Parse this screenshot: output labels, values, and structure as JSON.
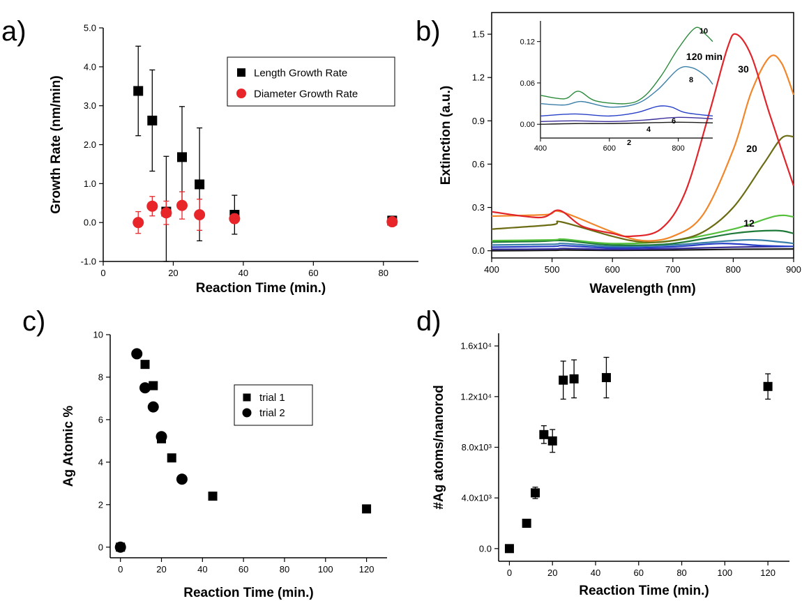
{
  "panels": {
    "a": {
      "label": "a)"
    },
    "b": {
      "label": "b)"
    },
    "c": {
      "label": "c)"
    },
    "d": {
      "label": "d)"
    }
  },
  "chart_data": [
    {
      "id": "a",
      "type": "scatter",
      "xlabel": "Reaction Time (min.)",
      "ylabel": "Growth Rate (nm/min)",
      "xlim": [
        0,
        90
      ],
      "ylim": [
        -1.0,
        5.0
      ],
      "xticks": [
        0,
        20,
        40,
        60,
        80
      ],
      "xtick_labels": [
        "0",
        "20",
        "40",
        "60",
        "80"
      ],
      "yticks": [
        -1,
        0,
        1,
        2,
        3,
        4,
        5
      ],
      "ytick_labels": [
        "-1.0",
        "0.0",
        "1.0",
        "2.0",
        "3.0",
        "4.0",
        "5.0"
      ],
      "legend_position": "upper-right",
      "series": [
        {
          "name": "Length Growth Rate",
          "marker": "square",
          "color": "#000000",
          "x": [
            10,
            14,
            18,
            22.5,
            27.5,
            37.5,
            82.5
          ],
          "y": [
            3.38,
            2.62,
            0.28,
            1.68,
            0.98,
            0.2,
            0.05
          ],
          "err": [
            1.15,
            1.3,
            1.42,
            1.3,
            1.45,
            0.5,
            0.05
          ]
        },
        {
          "name": "Diameter Growth Rate",
          "marker": "circle",
          "color": "#e8262a",
          "x": [
            10,
            14,
            18,
            22.5,
            27.5,
            37.5,
            82.5
          ],
          "y": [
            0.0,
            0.42,
            0.25,
            0.44,
            0.2,
            0.1,
            0.02
          ],
          "err": [
            0.28,
            0.25,
            0.3,
            0.35,
            0.4,
            0.12,
            0.05
          ]
        }
      ]
    },
    {
      "id": "b",
      "type": "line",
      "xlabel": "Wavelength (nm)",
      "ylabel": "Extinction (a.u.)",
      "xlim": [
        400,
        900
      ],
      "ylim": [
        -0.05,
        1.65
      ],
      "xticks": [
        400,
        500,
        600,
        700,
        800,
        900
      ],
      "xtick_labels": [
        "400",
        "500",
        "600",
        "700",
        "800",
        "900"
      ],
      "yticks": [
        0.0,
        0.3,
        0.6,
        0.9,
        1.2,
        1.5
      ],
      "ytick_labels": [
        "0.0",
        "0.3",
        "0.6",
        "0.9",
        "1.2",
        "1.5"
      ],
      "series": [
        {
          "name": "2",
          "color": "#1a1a1a",
          "x": [
            400,
            500,
            520,
            600,
            700,
            800,
            900
          ],
          "y": [
            0.0,
            0.003,
            0.005,
            0.003,
            0.005,
            0.01,
            0.012
          ]
        },
        {
          "name": "4",
          "color": "#3a2f9a",
          "x": [
            400,
            500,
            520,
            600,
            700,
            800,
            900
          ],
          "y": [
            0.01,
            0.012,
            0.016,
            0.01,
            0.015,
            0.025,
            0.03
          ]
        },
        {
          "name": "6",
          "color": "#2840c8",
          "x": [
            400,
            500,
            520,
            600,
            700,
            780,
            850,
            900
          ],
          "y": [
            0.025,
            0.03,
            0.035,
            0.02,
            0.028,
            0.05,
            0.035,
            0.03
          ]
        },
        {
          "name": "8",
          "color": "#3a7fa8",
          "x": [
            400,
            500,
            520,
            600,
            700,
            820,
            880,
            900
          ],
          "y": [
            0.04,
            0.045,
            0.05,
            0.03,
            0.04,
            0.075,
            0.06,
            0.05
          ]
        },
        {
          "name": "10",
          "color": "#1f7a3a",
          "x": [
            400,
            480,
            520,
            600,
            700,
            800,
            870,
            900
          ],
          "y": [
            0.06,
            0.065,
            0.07,
            0.04,
            0.05,
            0.12,
            0.14,
            0.12
          ]
        },
        {
          "name": "12",
          "color": "#55c03c",
          "x": [
            400,
            500,
            520,
            600,
            700,
            800,
            870,
            900
          ],
          "y": [
            0.07,
            0.075,
            0.08,
            0.05,
            0.07,
            0.15,
            0.24,
            0.235
          ]
        },
        {
          "name": "20",
          "color": "#6b6b14",
          "x": [
            400,
            500,
            515,
            600,
            650,
            700,
            750,
            800,
            850,
            880,
            900
          ],
          "y": [
            0.15,
            0.18,
            0.2,
            0.1,
            0.06,
            0.07,
            0.13,
            0.3,
            0.6,
            0.78,
            0.79
          ]
        },
        {
          "name": "30",
          "color": "#f2862a",
          "x": [
            400,
            490,
            515,
            600,
            650,
            700,
            750,
            800,
            830,
            860,
            880,
            900
          ],
          "y": [
            0.24,
            0.25,
            0.27,
            0.13,
            0.07,
            0.1,
            0.25,
            0.7,
            1.1,
            1.34,
            1.3,
            1.08
          ]
        },
        {
          "name": "120 min",
          "color": "#e0242a",
          "x": [
            400,
            480,
            512,
            550,
            600,
            630,
            680,
            720,
            760,
            790,
            805,
            830,
            860,
            900
          ],
          "y": [
            0.27,
            0.23,
            0.28,
            0.17,
            0.12,
            0.1,
            0.15,
            0.4,
            0.95,
            1.4,
            1.5,
            1.35,
            0.95,
            0.45
          ]
        }
      ],
      "curve_labels": [
        "120 min",
        "30",
        "20",
        "12"
      ],
      "inset": {
        "xlim": [
          400,
          900
        ],
        "ylim": [
          -0.02,
          0.15
        ],
        "xticks": [
          400,
          600,
          800
        ],
        "xtick_labels": [
          "400",
          "600",
          "800"
        ],
        "yticks": [
          0.0,
          0.06,
          0.12
        ],
        "ytick_labels": [
          "0.00",
          "0.06",
          "0.12"
        ],
        "labels": [
          "10",
          "8",
          "6",
          "4",
          "2"
        ],
        "series": [
          {
            "name": "2",
            "color": "#1a1a1a",
            "x": [
              400,
              500,
              600,
              700,
              800,
              900
            ],
            "y": [
              0.0,
              0.001,
              0.001,
              0.002,
              0.003,
              0.002
            ]
          },
          {
            "name": "4",
            "color": "#3a2f9a",
            "x": [
              400,
              500,
              600,
              700,
              800,
              900
            ],
            "y": [
              0.004,
              0.005,
              0.004,
              0.006,
              0.01,
              0.008
            ]
          },
          {
            "name": "6",
            "color": "#2840c8",
            "x": [
              400,
              500,
              600,
              680,
              740,
              780,
              820,
              900
            ],
            "y": [
              0.012,
              0.015,
              0.012,
              0.017,
              0.026,
              0.025,
              0.017,
              0.012
            ]
          },
          {
            "name": "8",
            "color": "#3a7fa8",
            "x": [
              400,
              470,
              520,
              600,
              680,
              740,
              800,
              840,
              880,
              900
            ],
            "y": [
              0.03,
              0.028,
              0.033,
              0.025,
              0.03,
              0.05,
              0.08,
              0.082,
              0.07,
              0.058
            ]
          },
          {
            "name": "10",
            "color": "#2a8a3a",
            "x": [
              400,
              470,
              510,
              560,
              650,
              700,
              750,
              800,
              850,
              880,
              900
            ],
            "y": [
              0.042,
              0.037,
              0.048,
              0.034,
              0.03,
              0.04,
              0.07,
              0.11,
              0.14,
              0.13,
              0.12
            ]
          }
        ]
      }
    },
    {
      "id": "c",
      "type": "scatter",
      "xlabel": "Reaction Time (min.)",
      "ylabel": "Ag Atomic %",
      "xlim": [
        -5,
        130
      ],
      "ylim": [
        -0.5,
        10
      ],
      "xticks": [
        0,
        20,
        40,
        60,
        80,
        100,
        120
      ],
      "xtick_labels": [
        "0",
        "20",
        "40",
        "60",
        "80",
        "100",
        "120"
      ],
      "yticks": [
        0,
        2,
        4,
        6,
        8,
        10
      ],
      "ytick_labels": [
        "0",
        "2",
        "4",
        "6",
        "8",
        "10"
      ],
      "legend_position": "center",
      "series": [
        {
          "name": "trial 1",
          "marker": "square",
          "color": "#000000",
          "x": [
            0,
            12,
            16,
            20,
            25,
            45,
            120
          ],
          "y": [
            0.0,
            8.6,
            7.6,
            5.1,
            4.2,
            2.4,
            1.8
          ]
        },
        {
          "name": "trial 2",
          "marker": "circle",
          "color": "#000000",
          "x": [
            0,
            8,
            12,
            16,
            20,
            30
          ],
          "y": [
            0.0,
            9.1,
            7.5,
            6.6,
            5.2,
            3.2
          ]
        }
      ]
    },
    {
      "id": "d",
      "type": "scatter",
      "xlabel": "Reaction Time (min.)",
      "ylabel": "#Ag atoms/nanorod",
      "xlim": [
        -5,
        130
      ],
      "ylim": [
        -1000,
        17000
      ],
      "xticks": [
        0,
        20,
        40,
        60,
        80,
        100,
        120
      ],
      "xtick_labels": [
        "0",
        "20",
        "40",
        "60",
        "80",
        "100",
        "120"
      ],
      "yticks": [
        0,
        4000,
        8000,
        12000,
        16000
      ],
      "ytick_labels": [
        "0.0",
        "4.0x10³",
        "8.0x10³",
        "1.2x10⁴",
        "1.6x10⁴"
      ],
      "series": [
        {
          "marker": "square",
          "color": "#000000",
          "x": [
            0,
            8,
            12,
            16,
            20,
            25,
            30,
            45,
            120
          ],
          "y": [
            0,
            2000,
            4400,
            9000,
            8500,
            13300,
            13400,
            13500,
            12800
          ],
          "err": [
            0,
            100,
            450,
            700,
            900,
            1500,
            1500,
            1600,
            1000
          ]
        }
      ]
    }
  ]
}
